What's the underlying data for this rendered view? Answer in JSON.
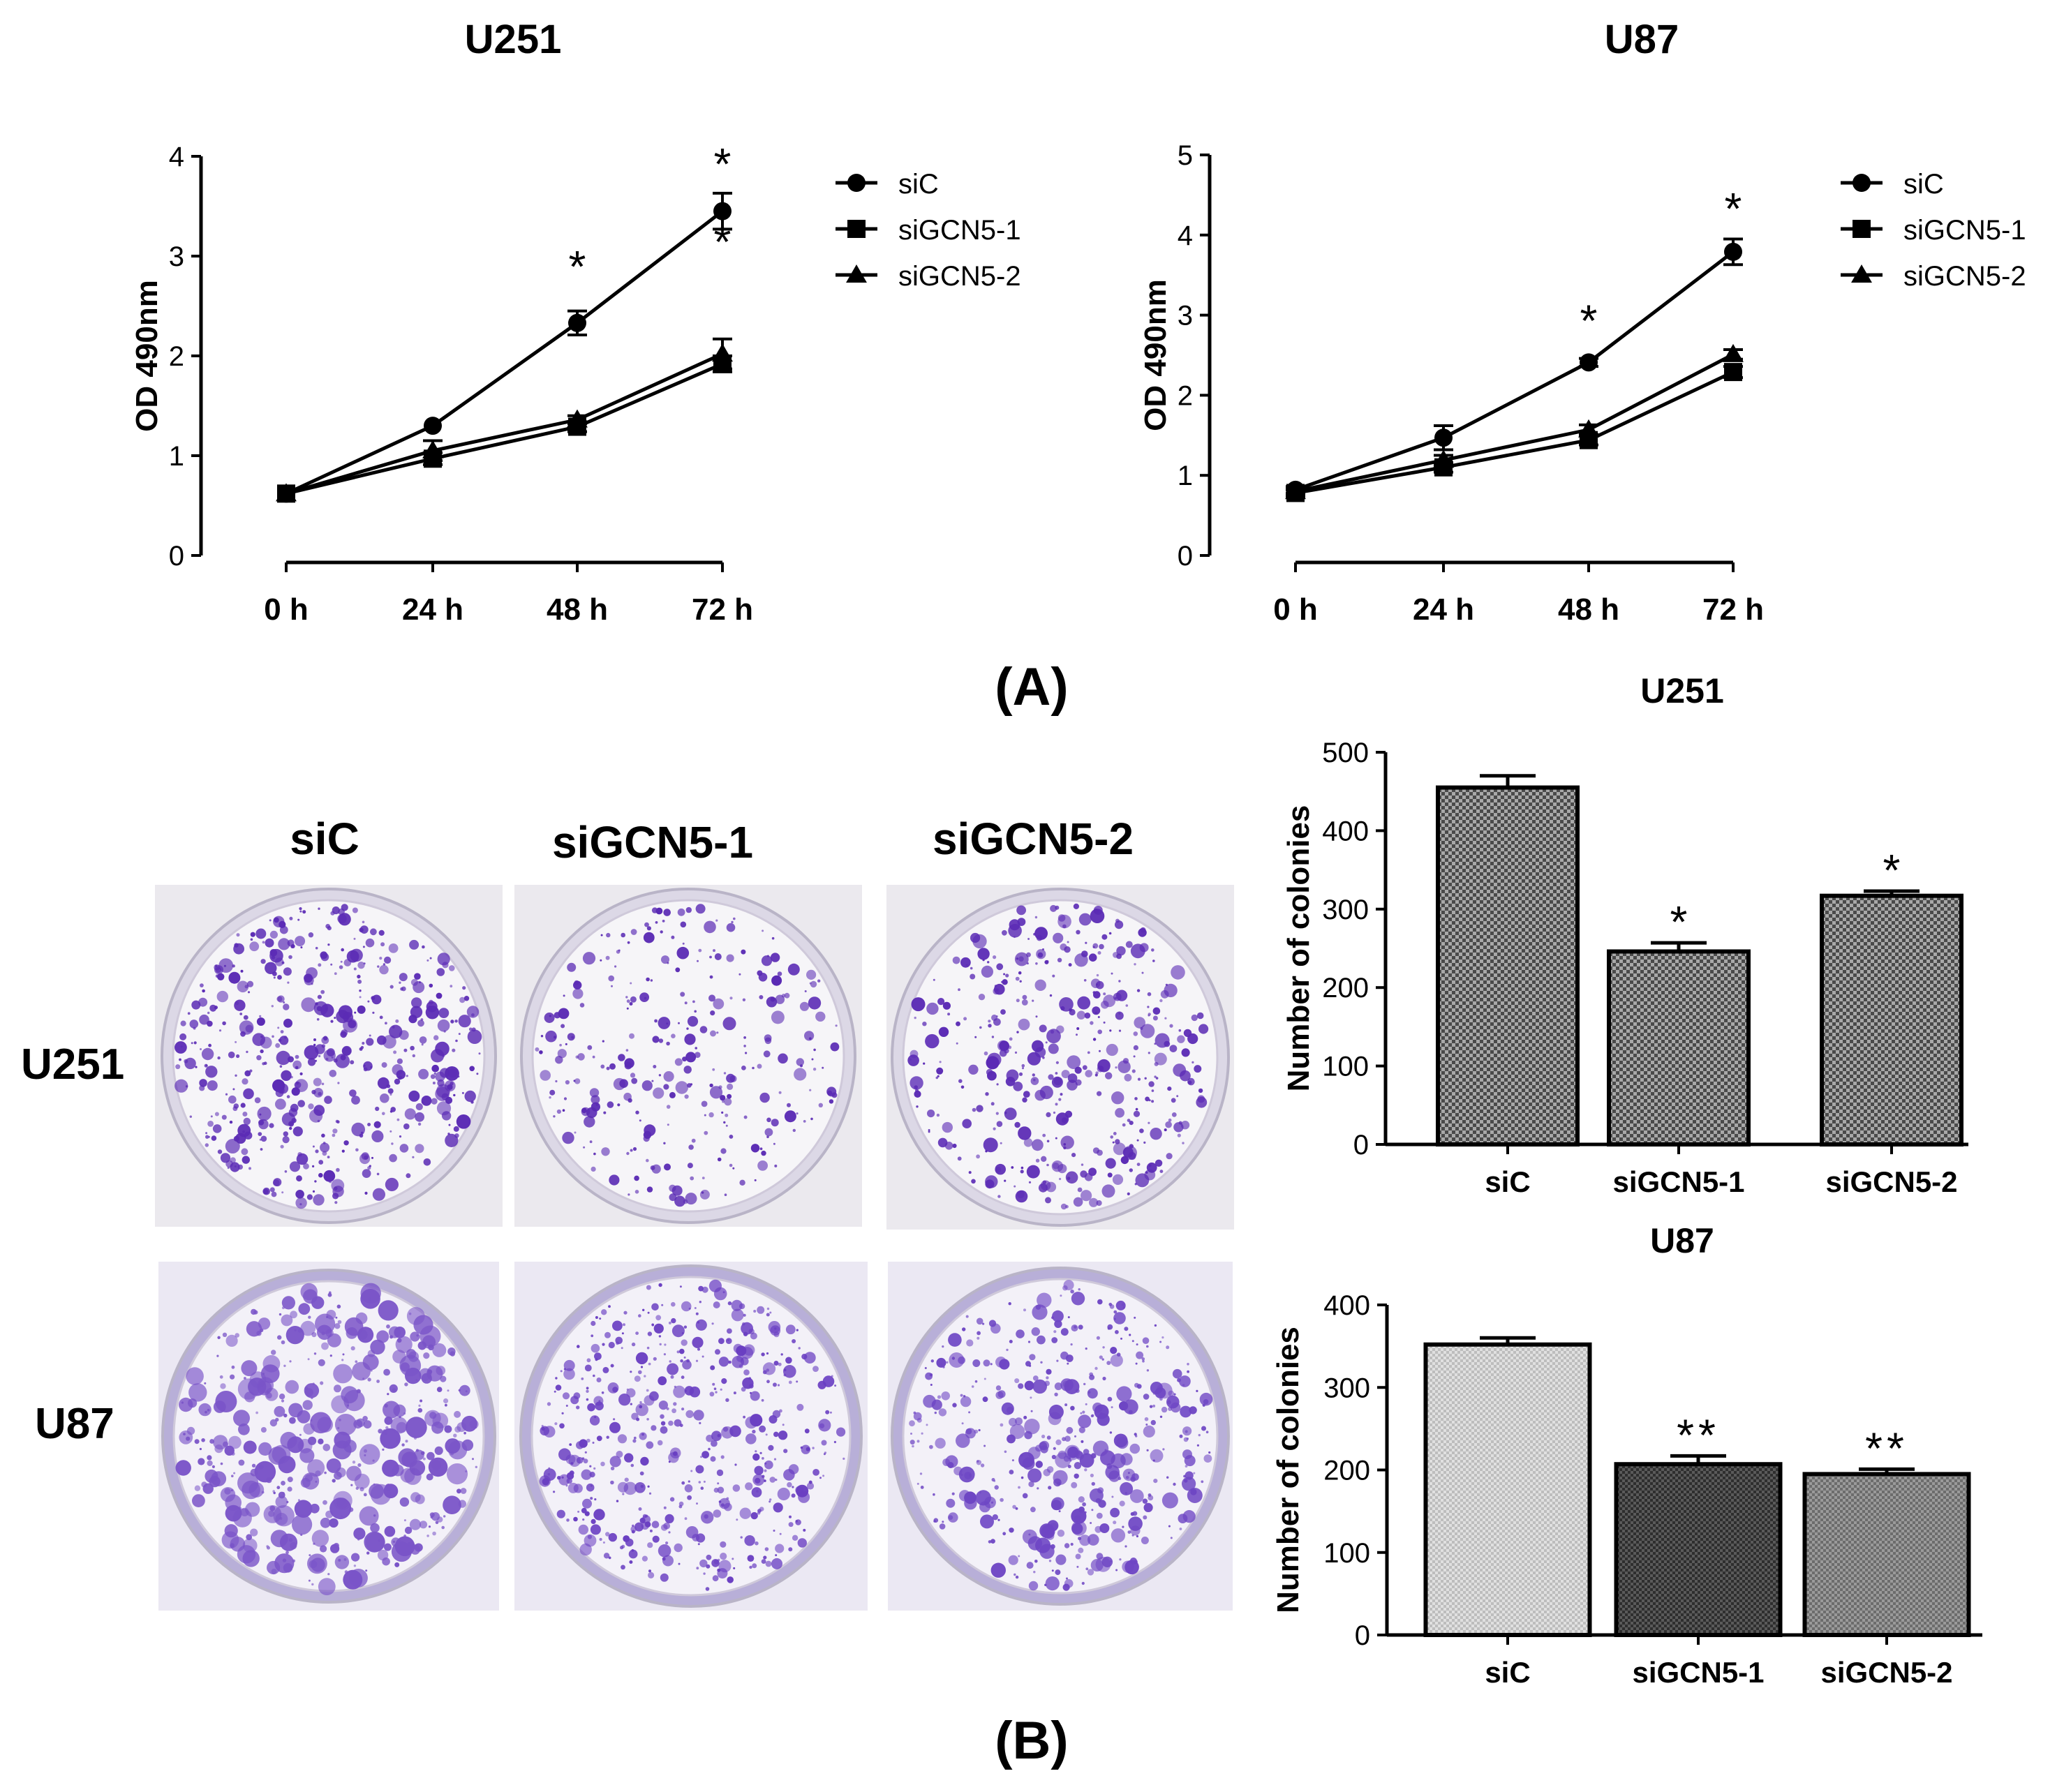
{
  "panel_labels": {
    "a": "(A)",
    "b": "(B)"
  },
  "colony_plates": {
    "column_labels": [
      "siC",
      "siGCN5-1",
      "siGCN5-2"
    ],
    "row_labels": [
      "U251",
      "U87"
    ]
  },
  "chart_data": [
    {
      "type": "line",
      "id": "mtt-u251",
      "title": "U251",
      "xlabel": "",
      "ylabel": "OD 490nm",
      "categories": [
        "0 h",
        "24 h",
        "48 h",
        "72 h"
      ],
      "ylim": [
        0,
        4
      ],
      "yticks": [
        "0",
        "1",
        "2",
        "3",
        "4"
      ],
      "series": [
        {
          "name": "siC",
          "marker": "circle",
          "values": [
            0.62,
            1.3,
            2.33,
            3.45
          ],
          "errors": [
            0.03,
            0.03,
            0.12,
            0.18
          ]
        },
        {
          "name": "siGCN5-1",
          "marker": "square",
          "values": [
            0.62,
            0.97,
            1.29,
            1.92
          ],
          "errors": [
            0.03,
            0.06,
            0.05,
            0.08
          ]
        },
        {
          "name": "siGCN5-2",
          "marker": "triangle",
          "values": [
            0.62,
            1.05,
            1.36,
            2.02
          ],
          "errors": [
            0.03,
            0.1,
            0.04,
            0.15
          ]
        }
      ],
      "annotations": [
        {
          "category": "48 h",
          "text": "*",
          "y": 2.95
        },
        {
          "category": "72 h",
          "text": "*",
          "y": 3.98
        },
        {
          "category": "72 h",
          "text": "*",
          "y": 3.2
        }
      ],
      "legend": "right"
    },
    {
      "type": "line",
      "id": "mtt-u87",
      "title": "U87",
      "xlabel": "",
      "ylabel": "OD 490nm",
      "categories": [
        "0 h",
        "24 h",
        "48 h",
        "72 h"
      ],
      "ylim": [
        0,
        5
      ],
      "yticks": [
        "0",
        "1",
        "2",
        "3",
        "4",
        "5"
      ],
      "series": [
        {
          "name": "siC",
          "marker": "circle",
          "values": [
            0.82,
            1.47,
            2.41,
            3.79
          ],
          "errors": [
            0.04,
            0.15,
            0.05,
            0.16
          ]
        },
        {
          "name": "siGCN5-1",
          "marker": "square",
          "values": [
            0.78,
            1.1,
            1.44,
            2.29
          ],
          "errors": [
            0.04,
            0.06,
            0.06,
            0.07
          ]
        },
        {
          "name": "siGCN5-2",
          "marker": "triangle",
          "values": [
            0.8,
            1.19,
            1.57,
            2.51
          ],
          "errors": [
            0.04,
            0.06,
            0.06,
            0.06
          ]
        }
      ],
      "annotations": [
        {
          "category": "48 h",
          "text": "*",
          "y": 3.0
        },
        {
          "category": "72 h",
          "text": "*",
          "y": 4.4
        }
      ],
      "legend": "right"
    },
    {
      "type": "bar",
      "id": "colonies-u251",
      "title": "U251",
      "xlabel": "",
      "ylabel": "Number of colonies",
      "categories": [
        "siC",
        "siGCN5-1",
        "siGCN5-2"
      ],
      "values": [
        455,
        246,
        317
      ],
      "errors": [
        15,
        11,
        6
      ],
      "significance": [
        "",
        "*",
        "*"
      ],
      "ylim": [
        0,
        500
      ],
      "yticks": [
        "0",
        "100",
        "200",
        "300",
        "400",
        "500"
      ]
    },
    {
      "type": "bar",
      "id": "colonies-u87",
      "title": "U87",
      "xlabel": "",
      "ylabel": "Number of colonies",
      "categories": [
        "siC",
        "siGCN5-1",
        "siGCN5-2"
      ],
      "values": [
        352,
        207,
        195
      ],
      "errors": [
        8,
        10,
        6
      ],
      "significance": [
        "",
        "**",
        "**"
      ],
      "ylim": [
        0,
        400
      ],
      "yticks": [
        "0",
        "100",
        "200",
        "300",
        "400"
      ]
    }
  ]
}
